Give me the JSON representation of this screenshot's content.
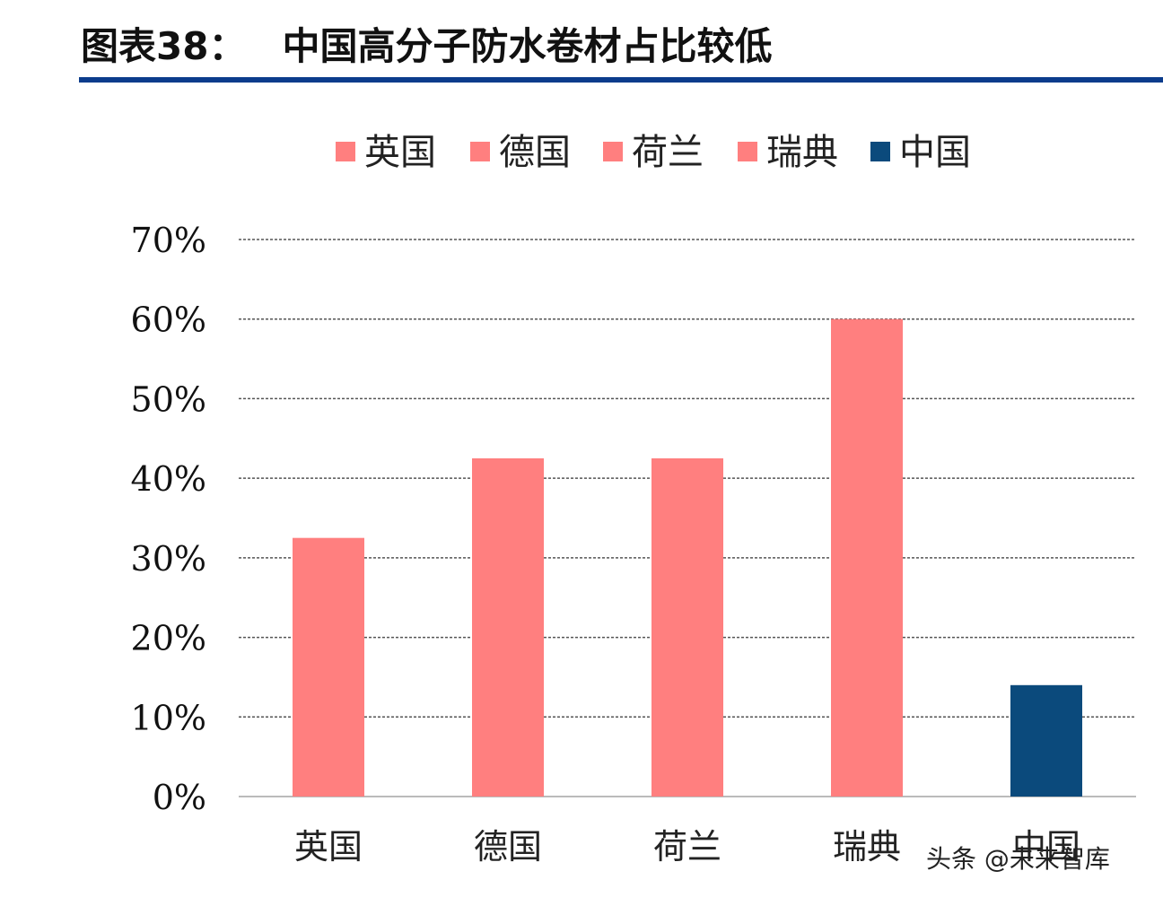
{
  "header": {
    "label": "图表38：",
    "title": "中国高分子防水卷材占比较低"
  },
  "watermark": "头条 @未来智库",
  "chart_data": {
    "type": "bar",
    "categories": [
      "英国",
      "德国",
      "荷兰",
      "瑞典",
      "中国"
    ],
    "values": [
      32.5,
      42.5,
      42.5,
      60.0,
      14.0
    ],
    "unit": "%",
    "ylim": [
      0,
      70
    ],
    "yticks": [
      0,
      10,
      20,
      30,
      40,
      50,
      60,
      70
    ],
    "ytick_labels": [
      "0%",
      "10%",
      "20%",
      "30%",
      "40%",
      "50%",
      "60%",
      "70%"
    ],
    "colors": [
      "#ff7f7f",
      "#ff7f7f",
      "#ff7f7f",
      "#ff7f7f",
      "#0b4a7c"
    ],
    "legend": {
      "placement": "top",
      "entries": [
        {
          "label": "英国",
          "color": "#ff7f7f"
        },
        {
          "label": "德国",
          "color": "#ff7f7f"
        },
        {
          "label": "荷兰",
          "color": "#ff7f7f"
        },
        {
          "label": "瑞典",
          "color": "#ff7f7f"
        },
        {
          "label": "中国",
          "color": "#0b4a7c"
        }
      ]
    },
    "grid": "horizontal-dashed",
    "title": "",
    "xlabel": "",
    "ylabel": ""
  }
}
